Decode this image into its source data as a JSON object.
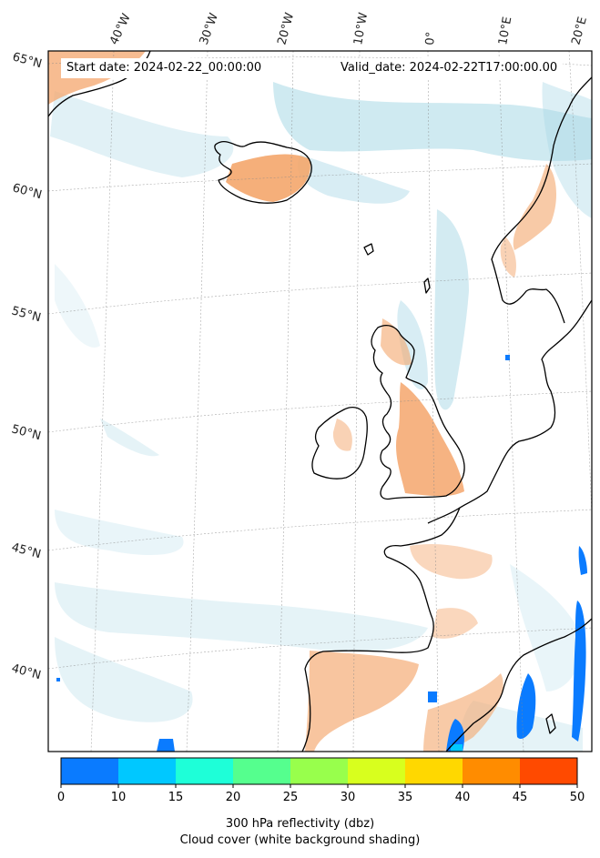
{
  "header": {
    "start_date": "Start date: 2024-02-22_00:00:00",
    "valid_date": "Valid_date: 2024-02-22T17:00:00.00"
  },
  "map": {
    "lon_labels": [
      "40°W",
      "30°W",
      "20°W",
      "10°W",
      "0°",
      "10°E",
      "20°E"
    ],
    "lat_labels": [
      "65°N",
      "60°N",
      "55°N",
      "50°N",
      "45°N",
      "40°N"
    ]
  },
  "colorbar": {
    "ticks": [
      "0",
      "10",
      "15",
      "20",
      "25",
      "30",
      "35",
      "40",
      "45",
      "50"
    ],
    "colors": [
      "#0a7bff",
      "#00c8ff",
      "#1effd8",
      "#55ff8e",
      "#98ff4c",
      "#d8ff1e",
      "#ffd800",
      "#ff8c00",
      "#ff4a00"
    ],
    "label": "300 hPa reflectivity (dbz)",
    "sublabel": "Cloud cover (white background shading)"
  },
  "colors": {
    "cloud": "#a8d8e6",
    "land_precip": "#f4a66c",
    "coast": "#000000"
  }
}
